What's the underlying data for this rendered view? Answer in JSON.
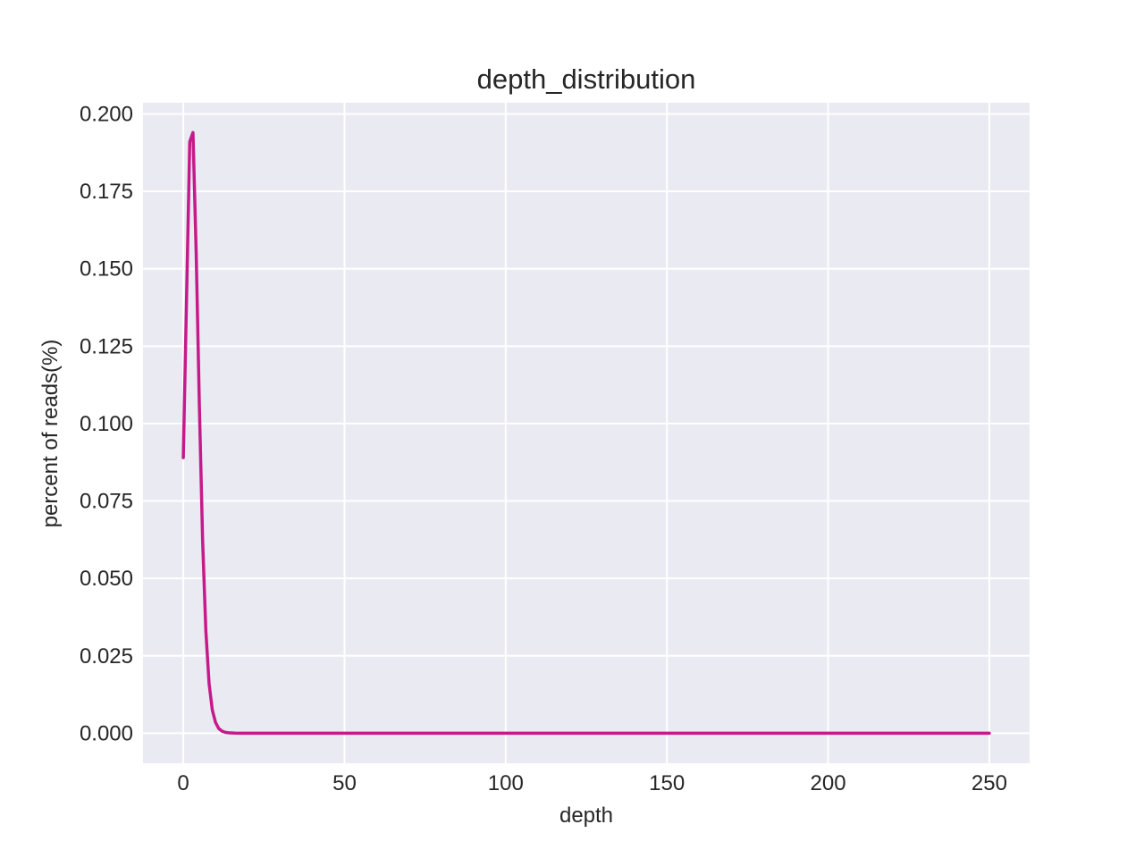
{
  "chart_data": {
    "type": "line",
    "title": "depth_distribution",
    "xlabel": "depth",
    "ylabel": "percent of reads(%)",
    "xlim": [
      -12.5,
      262.5
    ],
    "ylim": [
      -0.0097,
      0.2036
    ],
    "x_ticks": [
      0,
      50,
      100,
      150,
      200,
      250
    ],
    "x_tick_labels": [
      "0",
      "50",
      "100",
      "150",
      "200",
      "250"
    ],
    "y_ticks": [
      0,
      0.025,
      0.05,
      0.075,
      0.1,
      0.125,
      0.15,
      0.175,
      0.2
    ],
    "y_tick_labels": [
      "0.000",
      "0.025",
      "0.050",
      "0.075",
      "0.100",
      "0.125",
      "0.150",
      "0.175",
      "0.200"
    ],
    "grid": true,
    "background_color": "#eaeaf2",
    "grid_color": "#ffffff",
    "series": [
      {
        "color": "#c51b8a",
        "x": [
          0,
          1,
          2,
          3,
          4,
          5,
          6,
          7,
          8,
          9,
          10,
          11,
          12,
          13,
          14,
          16,
          18,
          20,
          25,
          30,
          40,
          50,
          75,
          100,
          125,
          150,
          175,
          200,
          225,
          250
        ],
        "y": [
          0.089,
          0.14,
          0.191,
          0.194,
          0.155,
          0.105,
          0.062,
          0.033,
          0.016,
          0.0075,
          0.0035,
          0.0015,
          0.0007,
          0.0003,
          0.00015,
          5e-05,
          2e-05,
          1e-05,
          0,
          0,
          0,
          0,
          0,
          0,
          0,
          0,
          0,
          0,
          0,
          0
        ]
      }
    ]
  }
}
